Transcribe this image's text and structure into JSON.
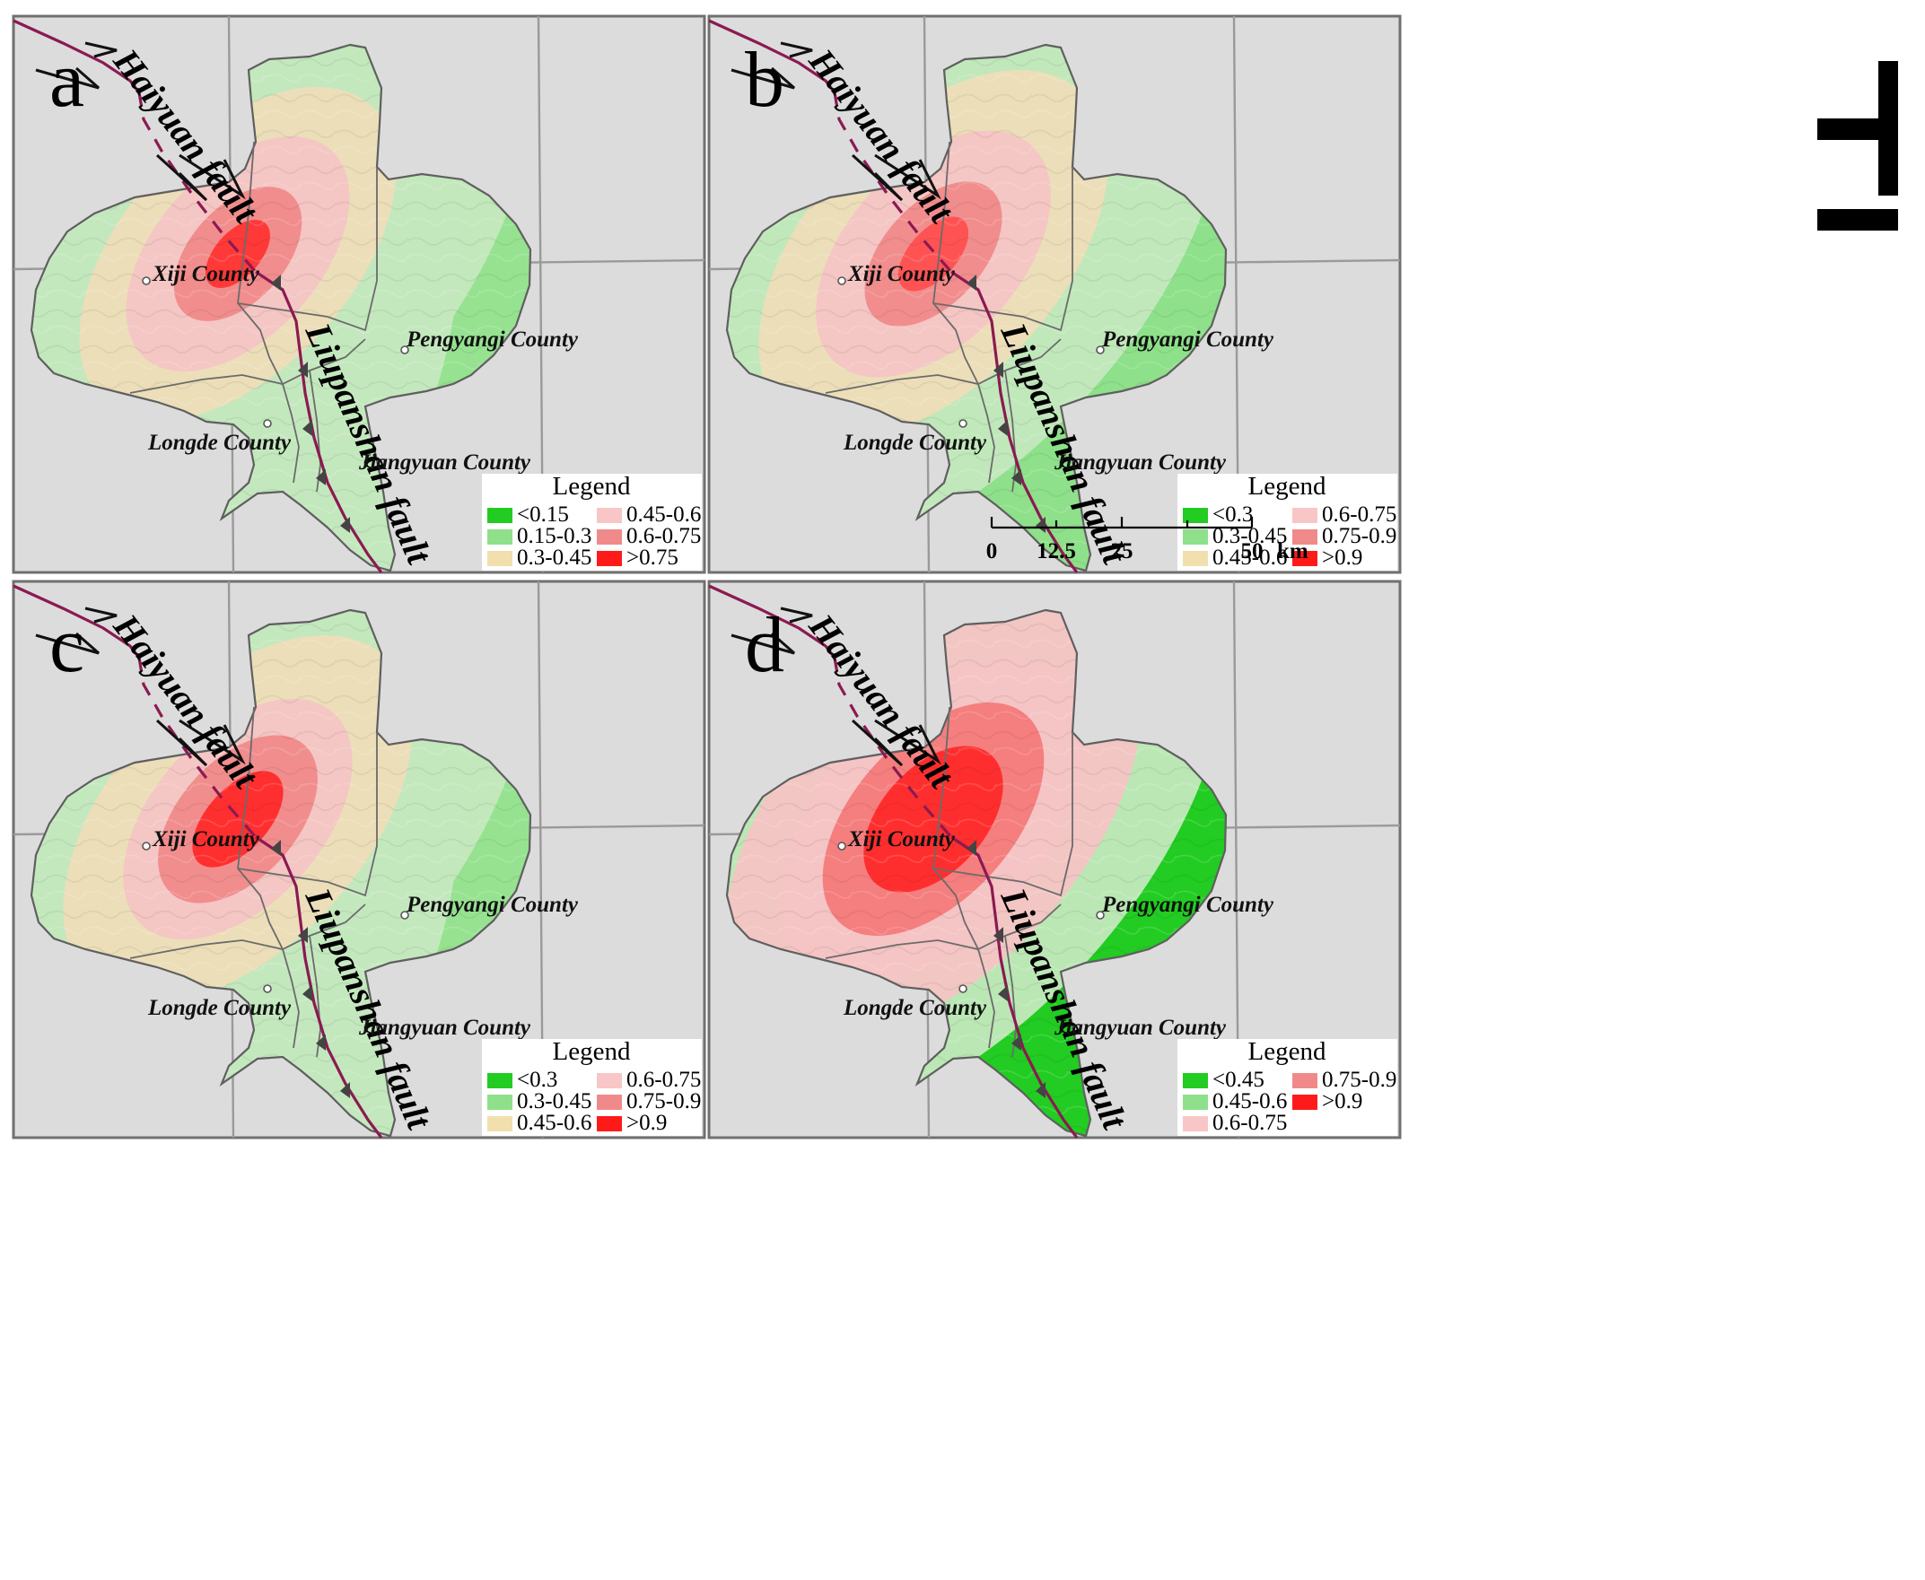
{
  "figure": {
    "colors": {
      "green_dark": "#22cc22",
      "green_mid": "#8ee08a",
      "green_light": "#c4e8be",
      "beige": "#eeddb8",
      "pink_light": "#f4c4c4",
      "pink_mid": "#f08a8a",
      "red": "#ff2a2a",
      "fault": "#8b1a52"
    }
  },
  "labels": {
    "haiyuan": "Haiyuan fault",
    "liupanshan": "Liupanshan fault",
    "xiji": "Xiji County",
    "pengyang": "Pengyangi County",
    "longde": "Longde County",
    "jiangyuan": "Jiangyuan County",
    "legend_title": "Legend"
  },
  "panels": [
    {
      "letter": "a",
      "legend": [
        {
          "label": "<0.15",
          "color": "#22cc22"
        },
        {
          "label": "0.15-0.3",
          "color": "#8ee08a"
        },
        {
          "label": "0.3-0.45",
          "color": "#f2dfae"
        },
        {
          "label": "0.45-0.6",
          "color": "#f8c6c6"
        },
        {
          "label": "0.6-0.75",
          "color": "#f08a8a"
        },
        {
          "label": ">0.75",
          "color": "#ff1a1a"
        }
      ]
    },
    {
      "letter": "b",
      "legend": [
        {
          "label": "<0.3",
          "color": "#22cc22"
        },
        {
          "label": "0.3-0.45",
          "color": "#8ee08a"
        },
        {
          "label": "0.45-0.6",
          "color": "#f2dfae"
        },
        {
          "label": "0.6-0.75",
          "color": "#f8c6c6"
        },
        {
          "label": "0.75-0.9",
          "color": "#f08a8a"
        },
        {
          "label": ">0.9",
          "color": "#ff1a1a"
        }
      ]
    },
    {
      "letter": "c",
      "legend": [
        {
          "label": "<0.3",
          "color": "#22cc22"
        },
        {
          "label": "0.3-0.45",
          "color": "#8ee08a"
        },
        {
          "label": "0.45-0.6",
          "color": "#f2dfae"
        },
        {
          "label": "0.6-0.75",
          "color": "#f8c6c6"
        },
        {
          "label": "0.75-0.9",
          "color": "#f08a8a"
        },
        {
          "label": ">0.9",
          "color": "#ff1a1a"
        }
      ]
    },
    {
      "letter": "d",
      "legend": [
        {
          "label": "<0.45",
          "color": "#22cc22"
        },
        {
          "label": "0.45-0.6",
          "color": "#8ee08a"
        },
        {
          "label": "0.6-0.75",
          "color": "#f8c6c6"
        },
        {
          "label": "0.75-0.9",
          "color": "#f08a8a"
        },
        {
          "label": ">0.9",
          "color": "#ff1a1a"
        }
      ]
    }
  ],
  "scale_bar": {
    "ticks": [
      "0",
      "12.5",
      "25",
      "50"
    ],
    "unit": "km"
  }
}
